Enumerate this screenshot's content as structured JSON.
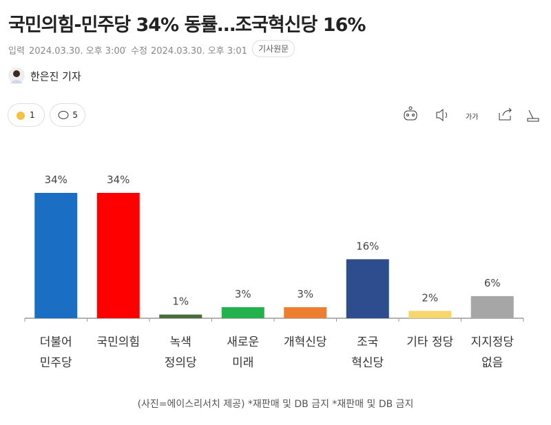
{
  "header": {
    "title": "국민의힘-민주당 34% 동률…조국혁신당 16%"
  },
  "meta": {
    "published_label": "입력",
    "published": "2024.03.30. 오후 3:00",
    "modified_label": "수정",
    "modified": "2024.03.30. 오후 3:01",
    "original_button": "기사원문"
  },
  "author": {
    "name": "한은진 기자"
  },
  "reactions": {
    "likes": 1,
    "comments": 5
  },
  "toolbar": {
    "font_size": "가가"
  },
  "chart_data": {
    "type": "bar",
    "categories": [
      "더불어\n민주당",
      "국민의힘",
      "녹색\n정의당",
      "새로운\n미래",
      "개혁신당",
      "조국\n혁신당",
      "기타 정당",
      "지지정당\n없음"
    ],
    "values": [
      34,
      34,
      1,
      3,
      3,
      16,
      2,
      6
    ],
    "value_labels": [
      "34%",
      "34%",
      "1%",
      "3%",
      "3%",
      "16%",
      "2%",
      "6%"
    ],
    "colors": [
      "#1a6fc4",
      "#ff0000",
      "#4a6b3a",
      "#22b14c",
      "#ed7d31",
      "#2e4d8f",
      "#f5d76e",
      "#a6a6a6"
    ]
  },
  "caption": "(사진=에이스리서치 제공) *재판매 및 DB 금지 *재판매 및 DB 금지"
}
